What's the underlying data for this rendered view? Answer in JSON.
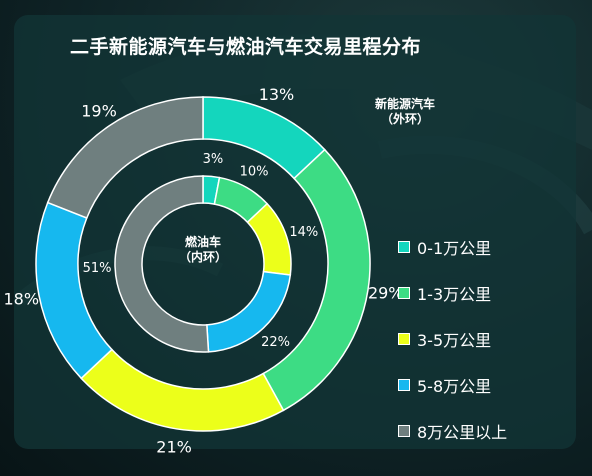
{
  "title": "二手新能源汽车与燃油汽车交易里程分布",
  "colors": {
    "background": "#0f2427",
    "panel": "#123436",
    "categories": [
      "#14d6bd",
      "#3ddc84",
      "#ecff1a",
      "#16b8ef",
      "#6f7f7f"
    ]
  },
  "chart_data": [
    {
      "type": "pie",
      "subtype": "donut",
      "ring": "outer",
      "label": "新能源汽车\n（外环）",
      "categories": [
        "0-1万公里",
        "1-3万公里",
        "3-5万公里",
        "5-8万公里",
        "8万公里以上"
      ],
      "values": [
        13,
        29,
        21,
        18,
        19
      ],
      "value_labels": [
        "13%",
        "29%",
        "21%",
        "18%",
        "19%"
      ]
    },
    {
      "type": "pie",
      "subtype": "donut",
      "ring": "inner",
      "label": "燃油车\n（内环）",
      "categories": [
        "0-1万公里",
        "1-3万公里",
        "3-5万公里",
        "5-8万公里",
        "8万公里以上"
      ],
      "values": [
        3,
        10,
        14,
        22,
        51
      ],
      "value_labels": [
        "3%",
        "10%",
        "14%",
        "22%",
        "51%"
      ]
    }
  ],
  "legend": {
    "position": "right",
    "items": [
      "0-1万公里",
      "1-3万公里",
      "3-5万公里",
      "5-8万公里",
      "8万公里以上"
    ]
  }
}
